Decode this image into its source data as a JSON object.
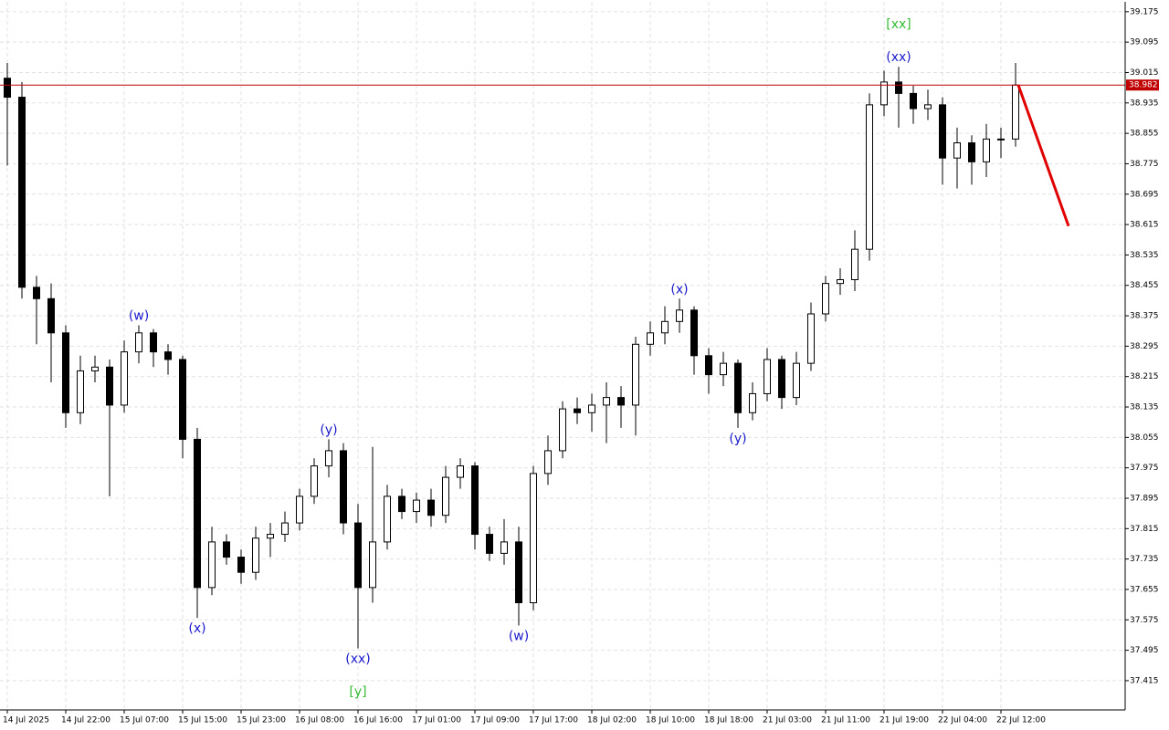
{
  "chart_data": {
    "type": "candlestick",
    "categories": [
      "14 Jul 2025",
      null,
      null,
      null,
      "14 Jul 22:00",
      null,
      null,
      null,
      "15 Jul 07:00",
      null,
      null,
      null,
      "15 Jul 15:00",
      null,
      null,
      null,
      "15 Jul 23:00",
      null,
      null,
      null,
      "16 Jul 08:00",
      null,
      null,
      null,
      "16 Jul 16:00",
      null,
      null,
      null,
      "17 Jul 01:00",
      null,
      null,
      null,
      "17 Jul 09:00",
      null,
      null,
      null,
      "17 Jul 17:00",
      null,
      null,
      null,
      "18 Jul 02:00",
      null,
      null,
      null,
      "18 Jul 10:00",
      null,
      null,
      null,
      "18 Jul 18:00",
      null,
      null,
      null,
      "21 Jul 03:00",
      null,
      null,
      null,
      "21 Jul 11:00",
      null,
      null,
      null,
      "21 Jul 19:00",
      null,
      null,
      null,
      "22 Jul 04:00",
      null,
      null,
      null,
      "22 Jul 12:00",
      null
    ],
    "open": [
      39.0,
      38.95,
      38.45,
      38.42,
      38.33,
      38.12,
      38.23,
      38.24,
      38.14,
      38.28,
      38.33,
      38.28,
      38.26,
      38.05,
      37.66,
      37.78,
      37.74,
      37.7,
      37.79,
      37.8,
      37.83,
      37.9,
      37.98,
      38.02,
      37.83,
      37.66,
      37.78,
      37.9,
      37.86,
      37.89,
      37.85,
      37.95,
      37.98,
      37.8,
      37.75,
      37.78,
      37.62,
      37.96,
      38.02,
      38.13,
      38.12,
      38.14,
      38.16,
      38.14,
      38.3,
      38.33,
      38.36,
      38.39,
      38.27,
      38.22,
      38.25,
      38.12,
      38.17,
      38.26,
      38.16,
      38.25,
      38.38,
      38.46,
      38.47,
      38.55,
      38.93,
      38.99,
      38.96,
      38.92,
      38.93,
      38.79,
      38.83,
      38.78,
      38.84,
      38.84
    ],
    "high": [
      39.04,
      38.99,
      38.48,
      38.46,
      38.35,
      38.27,
      38.27,
      38.26,
      38.31,
      38.35,
      38.34,
      38.3,
      38.27,
      38.08,
      37.82,
      37.8,
      37.76,
      37.82,
      37.83,
      37.86,
      37.92,
      38.0,
      38.05,
      38.04,
      37.88,
      38.03,
      37.93,
      37.92,
      37.91,
      37.92,
      37.98,
      38.0,
      37.99,
      37.82,
      37.84,
      37.82,
      37.98,
      38.06,
      38.15,
      38.16,
      38.17,
      38.2,
      38.19,
      38.32,
      38.36,
      38.4,
      38.42,
      38.4,
      38.29,
      38.28,
      38.26,
      38.2,
      38.29,
      38.27,
      38.28,
      38.41,
      38.48,
      38.5,
      38.6,
      38.96,
      39.02,
      39.03,
      38.98,
      38.97,
      38.95,
      38.87,
      38.85,
      38.88,
      38.87,
      39.04
    ],
    "low": [
      38.77,
      38.42,
      38.3,
      38.2,
      38.08,
      38.09,
      38.2,
      37.9,
      38.12,
      38.25,
      38.24,
      38.22,
      38.0,
      37.58,
      37.64,
      37.72,
      37.67,
      37.68,
      37.74,
      37.78,
      37.81,
      37.88,
      37.95,
      37.8,
      37.5,
      37.62,
      37.76,
      37.84,
      37.83,
      37.82,
      37.83,
      37.92,
      37.76,
      37.73,
      37.72,
      37.56,
      37.6,
      37.93,
      38.0,
      38.09,
      38.07,
      38.04,
      38.08,
      38.06,
      38.27,
      38.3,
      38.33,
      38.22,
      38.17,
      38.19,
      38.08,
      38.1,
      38.15,
      38.13,
      38.14,
      38.23,
      38.36,
      38.43,
      38.44,
      38.52,
      38.9,
      38.87,
      38.88,
      38.89,
      38.72,
      38.71,
      38.72,
      38.74,
      38.79,
      38.82
    ],
    "close": [
      38.95,
      38.45,
      38.42,
      38.33,
      38.12,
      38.23,
      38.24,
      38.14,
      38.28,
      38.33,
      38.28,
      38.26,
      38.05,
      37.66,
      37.78,
      37.74,
      37.7,
      37.79,
      37.8,
      37.83,
      37.9,
      37.98,
      38.02,
      37.83,
      37.66,
      37.78,
      37.9,
      37.86,
      37.89,
      37.85,
      37.95,
      37.98,
      37.8,
      37.75,
      37.78,
      37.62,
      37.96,
      38.02,
      38.13,
      38.12,
      38.14,
      38.16,
      38.14,
      38.3,
      38.33,
      38.36,
      38.39,
      38.27,
      38.22,
      38.25,
      38.12,
      38.17,
      38.26,
      38.16,
      38.25,
      38.38,
      38.46,
      38.47,
      38.55,
      38.93,
      38.99,
      38.96,
      38.92,
      38.93,
      38.79,
      38.83,
      38.78,
      38.84,
      38.84,
      38.982
    ],
    "ylim": [
      37.338,
      39.201
    ],
    "yticks": [
      39.175,
      39.095,
      39.015,
      38.935,
      38.855,
      38.775,
      38.695,
      38.615,
      38.535,
      38.455,
      38.375,
      38.295,
      38.215,
      38.135,
      38.055,
      37.975,
      37.895,
      37.815,
      37.735,
      37.655,
      37.575,
      37.495,
      37.415
    ],
    "grid": true,
    "up_color": "#ffffff",
    "down_color": "#000000",
    "current_price": 38.982,
    "current_price_color": "#c00000",
    "forecast": {
      "values": [
        38.982,
        38.611
      ],
      "color": "#e00000"
    },
    "annotations": [
      {
        "text": "(w)",
        "index": 9,
        "at": "high",
        "color": "#1a1acc"
      },
      {
        "text": "(x)",
        "index": 13,
        "at": "low",
        "color": "#1a1acc"
      },
      {
        "text": "(y)",
        "index": 22,
        "at": "high",
        "color": "#1a1acc"
      },
      {
        "text": "(xx)",
        "index": 24,
        "at": "low",
        "color": "#1a1acc"
      },
      {
        "text": "[y]",
        "index": 24,
        "at": "low",
        "color": "#33bb33"
      },
      {
        "text": "(w)",
        "index": 35,
        "at": "low",
        "color": "#1a1acc"
      },
      {
        "text": "(x)",
        "index": 46,
        "at": "high",
        "color": "#1a1acc"
      },
      {
        "text": "(y)",
        "index": 50,
        "at": "low",
        "color": "#1a1acc"
      },
      {
        "text": "(xx)",
        "index": 61,
        "at": "high",
        "color": "#1a1acc"
      },
      {
        "text": "[xx]",
        "index": 61,
        "at": "high",
        "color": "#33bb33"
      }
    ]
  }
}
